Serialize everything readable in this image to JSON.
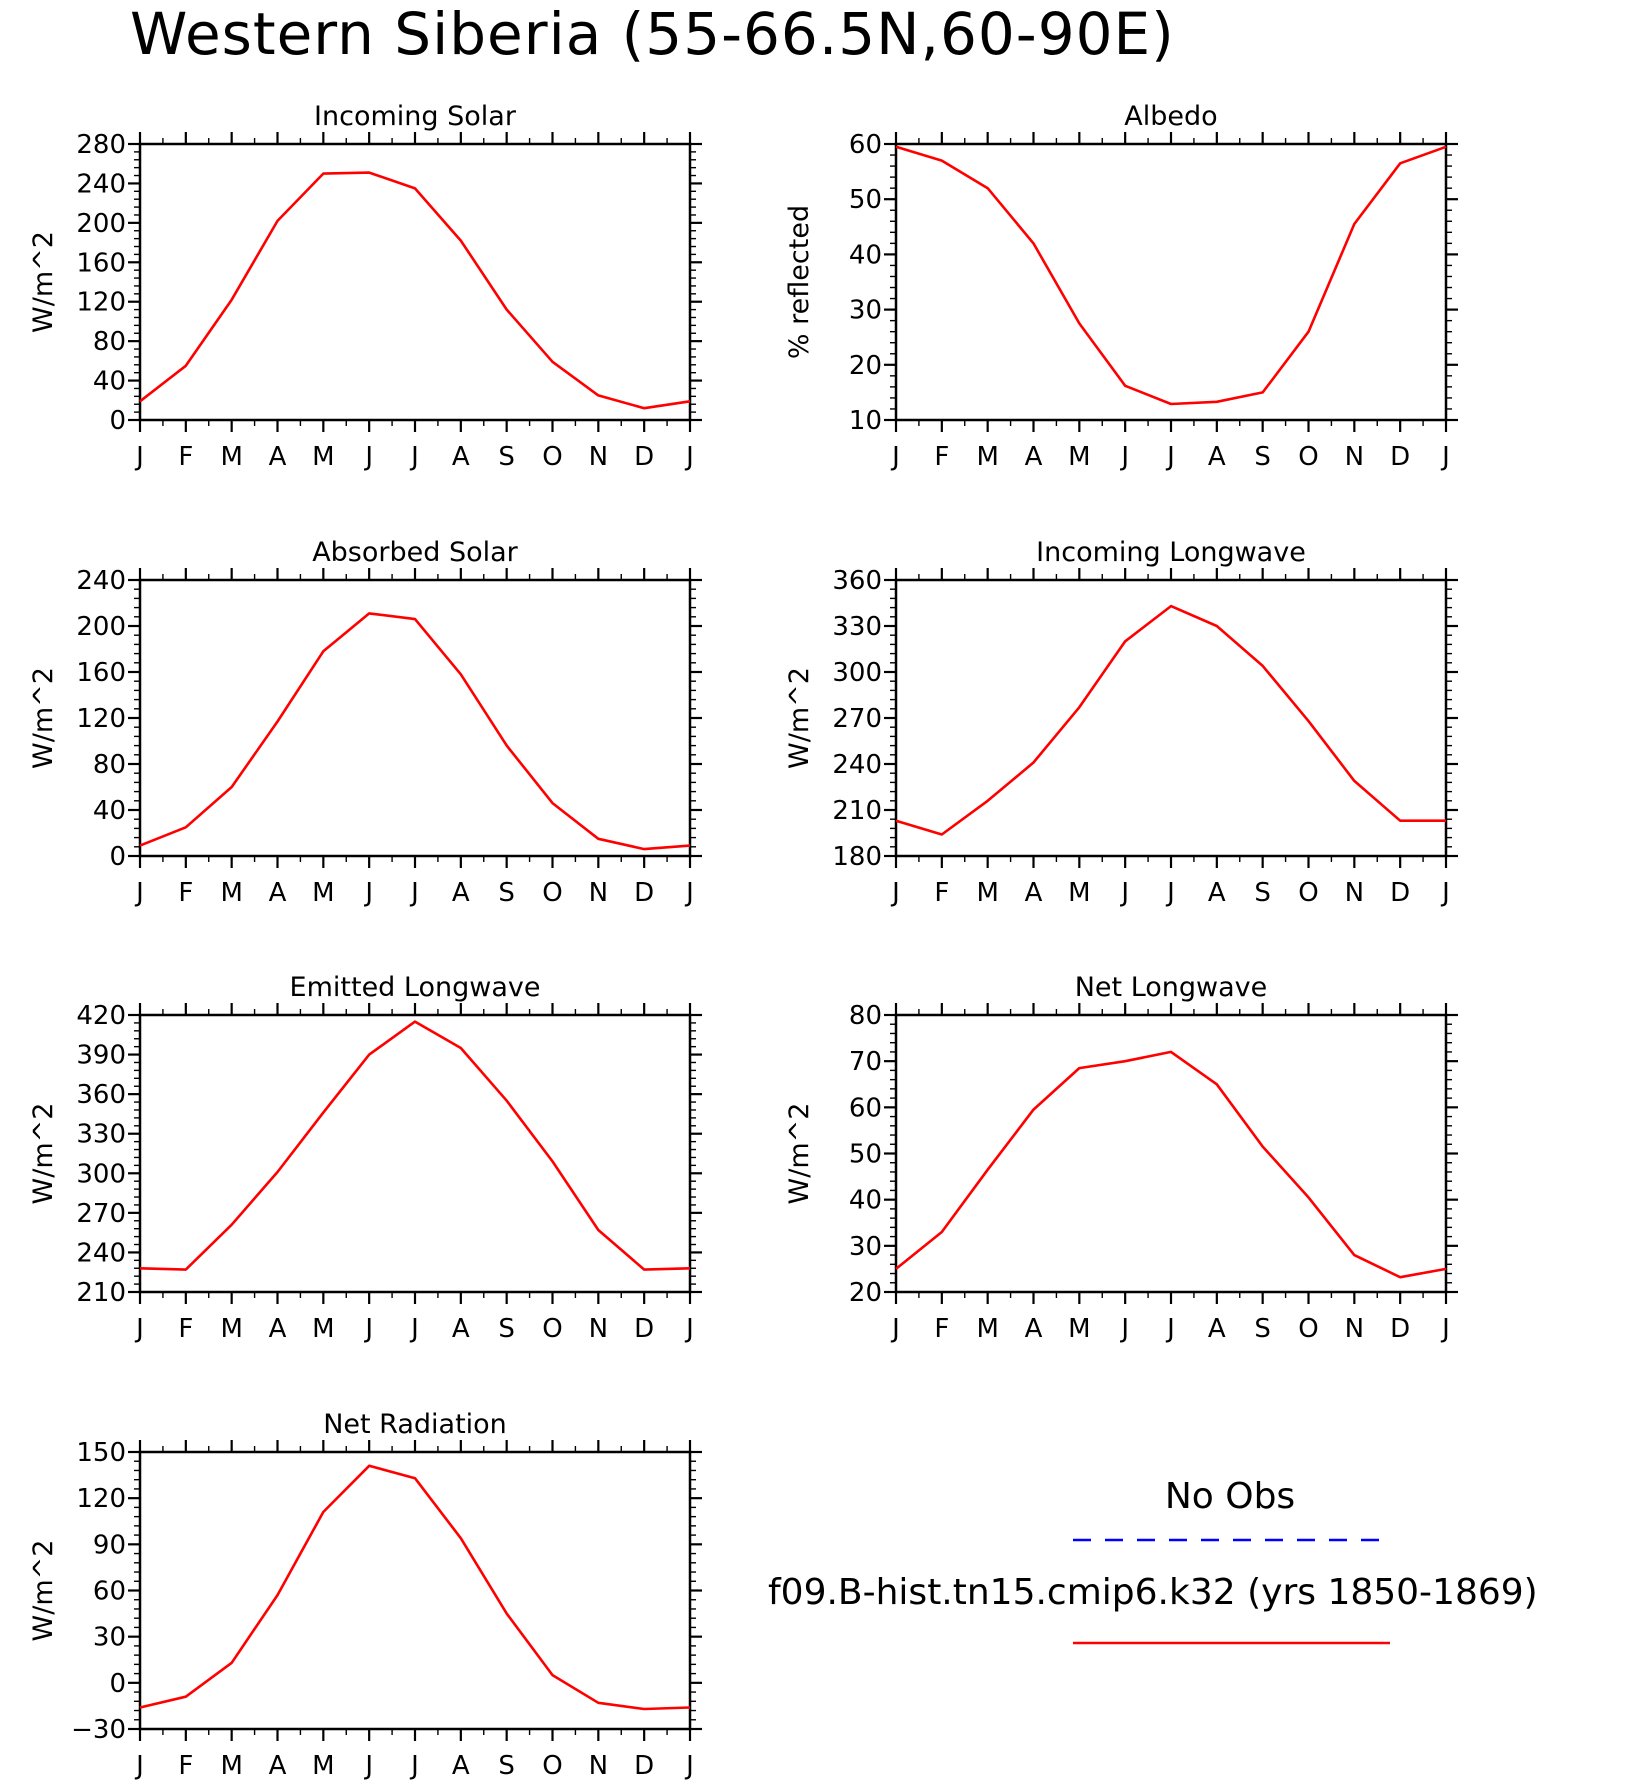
{
  "title": "Western Siberia (55-66.5N,60-90E)",
  "months": [
    "J",
    "F",
    "M",
    "A",
    "M",
    "J",
    "J",
    "A",
    "S",
    "O",
    "N",
    "D",
    "J"
  ],
  "legend": {
    "obs_label": "No Obs",
    "obs_color": "#0000ff",
    "model_label": "f09.B-hist.tn15.cmip6.k32 (yrs 1850-1869)",
    "model_color": "#ff0000"
  },
  "chart_data": [
    {
      "type": "line",
      "title": "Incoming Solar",
      "ylabel": "W/m^2",
      "ylim": [
        0,
        280
      ],
      "yticks": [
        0,
        40,
        80,
        120,
        160,
        200,
        240,
        280
      ],
      "series": [
        {
          "values": [
            19,
            55,
            122,
            202,
            250,
            251,
            235,
            182,
            112,
            59,
            25,
            12,
            19
          ],
          "color": "#ff0000"
        }
      ]
    },
    {
      "type": "line",
      "title": "Albedo",
      "ylabel": "% reflected",
      "ylim": [
        10,
        60
      ],
      "yticks": [
        10,
        20,
        30,
        40,
        50,
        60
      ],
      "series": [
        {
          "values": [
            59.5,
            57,
            52,
            42,
            27.5,
            16.2,
            12.9,
            13.3,
            15,
            26,
            45.5,
            56.5,
            59.5
          ],
          "color": "#ff0000"
        }
      ]
    },
    {
      "type": "line",
      "title": "Absorbed Solar",
      "ylabel": "W/m^2",
      "ylim": [
        0,
        240
      ],
      "yticks": [
        0,
        40,
        80,
        120,
        160,
        200,
        240
      ],
      "series": [
        {
          "values": [
            9,
            25,
            60,
            117,
            178,
            211,
            206,
            158,
            96,
            46,
            15,
            6,
            9
          ],
          "color": "#ff0000"
        }
      ]
    },
    {
      "type": "line",
      "title": "Incoming Longwave",
      "ylabel": "W/m^2",
      "ylim": [
        180,
        360
      ],
      "yticks": [
        180,
        210,
        240,
        270,
        300,
        330,
        360
      ],
      "series": [
        {
          "values": [
            203,
            194,
            216,
            241,
            277,
            320,
            343,
            330,
            304,
            268,
            229,
            203,
            203
          ],
          "color": "#ff0000"
        }
      ]
    },
    {
      "type": "line",
      "title": "Emitted Longwave",
      "ylabel": "W/m^2",
      "ylim": [
        210,
        420
      ],
      "yticks": [
        210,
        240,
        270,
        300,
        330,
        360,
        390,
        420
      ],
      "series": [
        {
          "values": [
            228,
            227,
            261,
            301,
            346,
            390,
            415,
            395,
            355,
            309,
            257,
            227,
            228
          ],
          "color": "#ff0000"
        }
      ]
    },
    {
      "type": "line",
      "title": "Net Longwave",
      "ylabel": "W/m^2",
      "ylim": [
        20,
        80
      ],
      "yticks": [
        20,
        30,
        40,
        50,
        60,
        70,
        80
      ],
      "series": [
        {
          "values": [
            25,
            33,
            46.5,
            59.5,
            68.5,
            70,
            72,
            65,
            51.5,
            40.5,
            28,
            23.2,
            25
          ],
          "color": "#ff0000"
        }
      ]
    },
    {
      "type": "line",
      "title": "Net Radiation",
      "ylabel": "W/m^2",
      "ylim": [
        -30,
        150
      ],
      "yticks": [
        -30,
        0,
        30,
        60,
        90,
        120,
        150
      ],
      "series": [
        {
          "values": [
            -16,
            -9,
            13,
            57,
            111,
            141,
            133,
            94,
            45,
            5,
            -13,
            -17,
            -16
          ],
          "color": "#ff0000"
        }
      ]
    }
  ]
}
